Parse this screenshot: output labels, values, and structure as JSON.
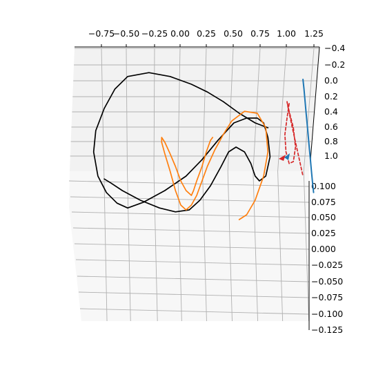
{
  "chart_data": {
    "type": "line",
    "projection": "3d",
    "title": "",
    "xlabel": "",
    "ylabel": "",
    "zlabel": "",
    "grid": true,
    "pane_color": "#f2f2f2",
    "grid_color": "#b0b0b0",
    "x_axis": {
      "ticks": [
        "−0.75",
        "−0.50",
        "−0.25",
        "0.00",
        "0.25",
        "0.50",
        "0.75",
        "1.00",
        "1.25"
      ],
      "range": [
        -0.9,
        1.3
      ]
    },
    "y_axis": {
      "ticks": [
        "−0.4",
        "−0.2",
        "0.0",
        "0.2",
        "0.4",
        "0.6",
        "0.8",
        "1.0"
      ],
      "range": [
        -0.4,
        1.0
      ]
    },
    "z_axis": {
      "ticks": [
        "0.100",
        "0.075",
        "0.050",
        "0.025",
        "0.000",
        "−0.025",
        "−0.050",
        "−0.075",
        "−0.100",
        "−0.125"
      ],
      "range": [
        -0.125,
        0.1
      ]
    },
    "series": [
      {
        "color": "#000000",
        "style": "solid",
        "note": "black trajectory (projected view)",
        "x": [
          0.82,
          0.7,
          0.55,
          0.4,
          0.25,
          0.1,
          -0.1,
          -0.3,
          -0.5,
          -0.62,
          -0.72,
          -0.8,
          -0.82,
          -0.78,
          -0.7,
          -0.6,
          -0.5,
          -0.35,
          -0.15,
          0.05,
          0.2,
          0.35,
          0.5,
          0.62,
          0.72,
          0.78,
          0.82,
          0.84,
          0.8,
          0.74,
          0.7,
          0.66,
          0.6,
          0.52,
          0.45,
          0.38,
          0.28,
          0.18,
          0.08,
          -0.05,
          -0.2,
          -0.38,
          -0.55,
          -0.66,
          -0.72
        ],
        "y": [
          0.45,
          0.5,
          0.6,
          0.72,
          0.82,
          0.9,
          0.98,
          1.02,
          0.98,
          0.85,
          0.65,
          0.42,
          0.2,
          -0.05,
          -0.22,
          -0.33,
          -0.38,
          -0.32,
          -0.2,
          -0.05,
          0.12,
          0.32,
          0.5,
          0.55,
          0.55,
          0.5,
          0.35,
          0.15,
          -0.05,
          -0.1,
          -0.05,
          0.08,
          0.2,
          0.25,
          0.2,
          0.05,
          -0.15,
          -0.3,
          -0.4,
          -0.42,
          -0.38,
          -0.3,
          -0.2,
          -0.12,
          -0.08
        ]
      },
      {
        "color": "#ff7f0e",
        "style": "solid",
        "note": "orange trajectory (projected view)",
        "x": [
          0.55,
          0.62,
          0.7,
          0.78,
          0.82,
          0.8,
          0.72,
          0.6,
          0.48,
          0.4,
          0.32,
          0.25,
          0.2,
          0.15,
          0.1,
          0.05,
          0.0,
          -0.05,
          -0.1,
          -0.15,
          -0.18,
          -0.18,
          -0.15,
          -0.1,
          -0.05,
          0.0,
          0.05,
          0.1,
          0.12,
          0.15,
          0.2,
          0.24,
          0.28,
          0.3
        ],
        "y": [
          -0.5,
          -0.45,
          -0.3,
          -0.05,
          0.2,
          0.45,
          0.6,
          0.62,
          0.52,
          0.38,
          0.22,
          0.05,
          -0.1,
          -0.25,
          -0.35,
          -0.4,
          -0.35,
          -0.2,
          0.0,
          0.18,
          0.3,
          0.35,
          0.3,
          0.18,
          0.05,
          -0.1,
          -0.2,
          -0.25,
          -0.2,
          -0.1,
          0.05,
          0.2,
          0.32,
          0.35
        ]
      },
      {
        "color": "#1f77b4",
        "style": "solid",
        "note": "blue trajectory (projected view)",
        "x": [
          1.15,
          1.16,
          1.17,
          1.18,
          1.19,
          1.2,
          1.21,
          1.22,
          1.23,
          1.24,
          1.25
        ],
        "y": [
          0.95,
          0.85,
          0.72,
          0.6,
          0.48,
          0.36,
          0.24,
          0.12,
          0.0,
          -0.12,
          -0.22
        ]
      },
      {
        "color": "#d62728",
        "style": "dashed",
        "note": "red dashed reference trajectory (projected view)",
        "x": [
          1.02,
          1.0,
          0.98,
          0.99,
          1.02,
          1.06,
          1.08,
          1.06,
          1.02,
          1.0,
          1.01,
          1.04,
          1.08,
          1.12,
          1.15
        ],
        "y": [
          0.7,
          0.55,
          0.38,
          0.2,
          0.08,
          0.1,
          0.25,
          0.45,
          0.62,
          0.72,
          0.66,
          0.5,
          0.3,
          0.1,
          -0.05
        ]
      }
    ]
  }
}
